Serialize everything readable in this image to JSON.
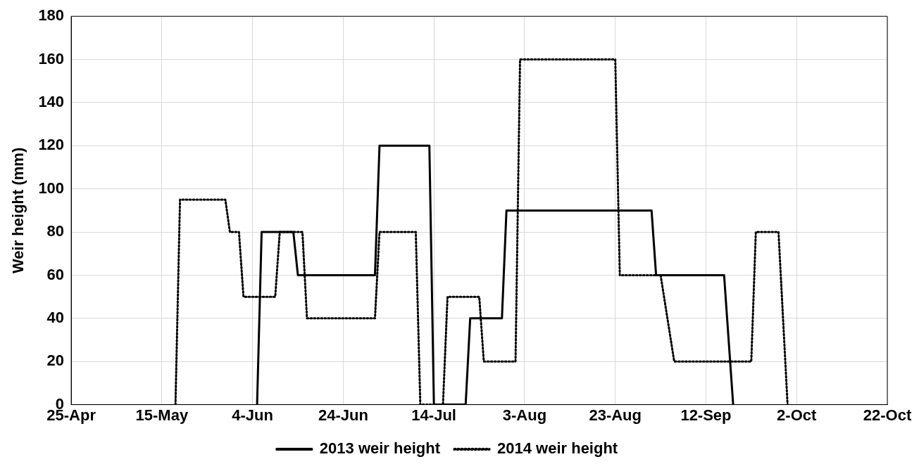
{
  "chart_data": {
    "type": "line",
    "ylabel": "Weir height (mm)",
    "xlim": [
      "--04-25",
      "--10-22"
    ],
    "xticks": [
      {
        "value": "--04-25",
        "label": "25-Apr"
      },
      {
        "value": "--05-15",
        "label": "15-May"
      },
      {
        "value": "--06-04",
        "label": "4-Jun"
      },
      {
        "value": "--06-24",
        "label": "24-Jun"
      },
      {
        "value": "--07-14",
        "label": "14-Jul"
      },
      {
        "value": "--08-03",
        "label": "3-Aug"
      },
      {
        "value": "--08-23",
        "label": "23-Aug"
      },
      {
        "value": "--09-12",
        "label": "12-Sep"
      },
      {
        "value": "--10-02",
        "label": "2-Oct"
      },
      {
        "value": "--10-22",
        "label": "22-Oct"
      }
    ],
    "ylim": [
      0,
      180
    ],
    "yticks": [
      0,
      20,
      40,
      60,
      80,
      100,
      120,
      140,
      160,
      180
    ],
    "grid": true,
    "legend": "bottom",
    "marker": "none",
    "series": [
      {
        "name": "2013 weir height",
        "color": "#000000",
        "line_style": "solid",
        "x": [
          "--06-05",
          "--06-06",
          "--06-13",
          "--06-14",
          "--07-01",
          "--07-02",
          "--07-13",
          "--07-14",
          "--07-21",
          "--07-22",
          "--07-29",
          "--07-30",
          "--08-31",
          "--09-01",
          "--09-16",
          "--09-18"
        ],
        "values": [
          0,
          80,
          80,
          60,
          60,
          120,
          120,
          0,
          0,
          40,
          40,
          90,
          90,
          60,
          60,
          0
        ]
      },
      {
        "name": "2014 weir height",
        "color": "#000000",
        "line_style": "dotted",
        "x": [
          "--05-18",
          "--05-19",
          "--05-29",
          "--05-30",
          "--06-01",
          "--06-02",
          "--06-09",
          "--06-10",
          "--06-15",
          "--06-16",
          "--07-01",
          "--07-02",
          "--07-10",
          "--07-11",
          "--07-16",
          "--07-17",
          "--07-24",
          "--07-25",
          "--08-01",
          "--08-02",
          "--08-23",
          "--08-24",
          "--09-02",
          "--09-05",
          "--09-22",
          "--09-23",
          "--09-28",
          "--09-30"
        ],
        "values": [
          0,
          95,
          95,
          80,
          80,
          50,
          50,
          80,
          80,
          40,
          40,
          80,
          80,
          0,
          0,
          50,
          50,
          20,
          20,
          160,
          160,
          60,
          60,
          20,
          20,
          80,
          80,
          0
        ]
      }
    ]
  }
}
